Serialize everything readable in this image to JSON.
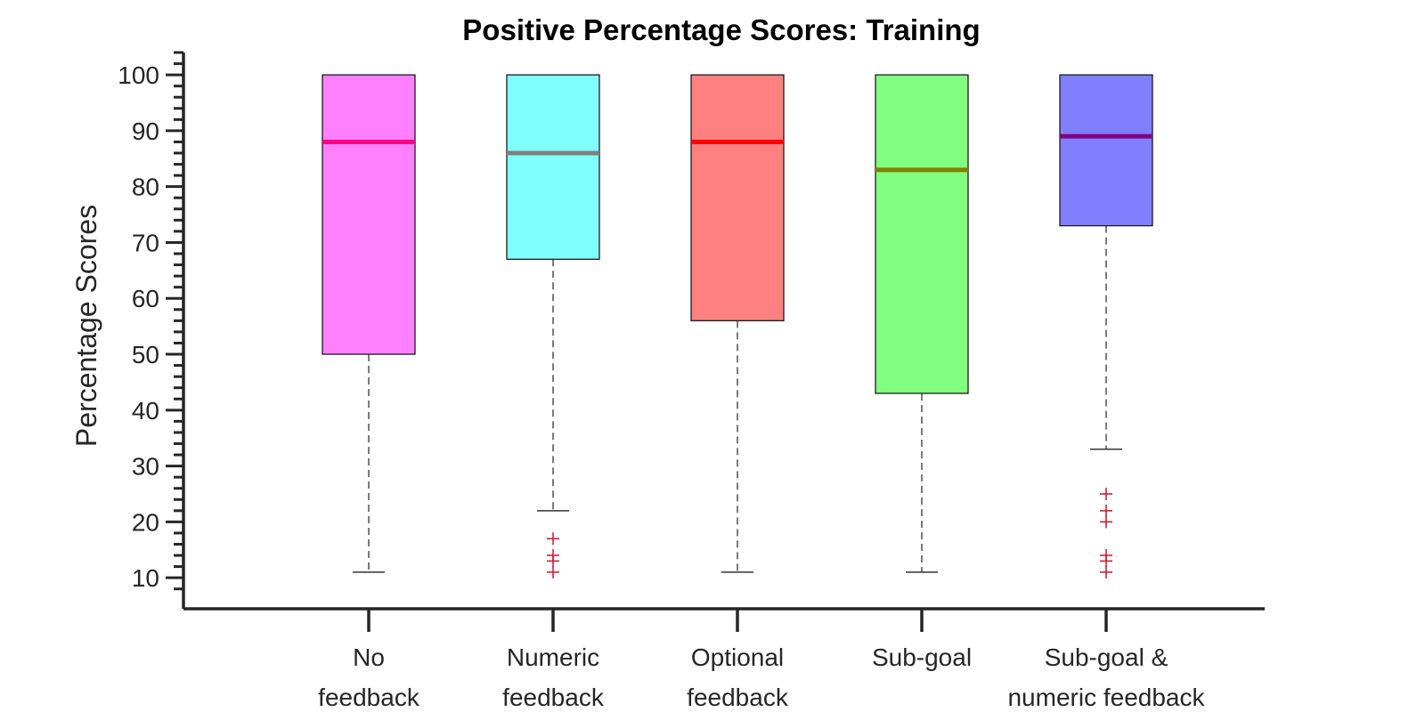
{
  "chart_data": {
    "type": "boxplot",
    "title": "Positive Percentage Scores: Training",
    "xlabel": "",
    "ylabel": "Percentage Scores",
    "ylim": [
      7,
      104
    ],
    "yticks": [
      10,
      20,
      30,
      40,
      50,
      60,
      70,
      80,
      90,
      100
    ],
    "grid": false,
    "categories": [
      [
        "No",
        "feedback"
      ],
      [
        "Numeric",
        "feedback"
      ],
      [
        "Optional",
        "feedback"
      ],
      [
        "Sub-goal",
        ""
      ],
      [
        "Sub-goal &",
        "numeric feedback"
      ]
    ],
    "series": [
      {
        "name": "No feedback",
        "min": 11,
        "q1": 50,
        "median": 88,
        "q3": 100,
        "max": 100,
        "outliers": [],
        "fill": "#ff80ff",
        "median_color": "#ff0080"
      },
      {
        "name": "Numeric feedback",
        "min": 22,
        "q1": 67,
        "median": 86,
        "q3": 100,
        "max": 100,
        "outliers": [
          17,
          14,
          13,
          11
        ],
        "fill": "#80ffff",
        "median_color": "#808080"
      },
      {
        "name": "Optional feedback",
        "min": 11,
        "q1": 56,
        "median": 88,
        "q3": 100,
        "max": 100,
        "outliers": [],
        "fill": "#ff8080",
        "median_color": "#ff0000"
      },
      {
        "name": "Sub-goal",
        "min": 11,
        "q1": 43,
        "median": 83,
        "q3": 100,
        "max": 100,
        "outliers": [],
        "fill": "#80ff80",
        "median_color": "#808000"
      },
      {
        "name": "Sub-goal & numeric feedback",
        "min": 33,
        "q1": 73,
        "median": 89,
        "q3": 100,
        "max": 100,
        "outliers": [
          25,
          22,
          20,
          14,
          13,
          11
        ],
        "fill": "#8080ff",
        "median_color": "#800080"
      }
    ],
    "outlier_color": "#d0112b",
    "axis_color": "#262626"
  }
}
